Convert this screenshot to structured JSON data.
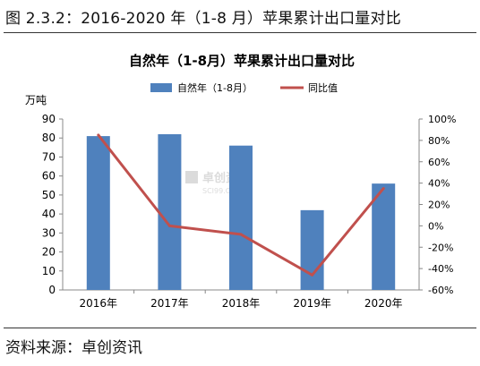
{
  "figure": {
    "caption": "图 2.3.2：2016-2020 年（1-8 月）苹果累计出口量对比",
    "source": "资料来源：卓创资讯"
  },
  "watermark": {
    "text_cn": "卓创资讯",
    "text_en": "SCI99.COM"
  },
  "chart_data": {
    "type": "bar",
    "title": "自然年（1-8月）苹果累计出口量对比",
    "categories": [
      "2016年",
      "2017年",
      "2018年",
      "2019年",
      "2020年"
    ],
    "series": [
      {
        "name": "自然年（1-8月）",
        "type": "bar",
        "axis": "left",
        "values": [
          81,
          82,
          76,
          42,
          56
        ],
        "color": "#4f81bd"
      },
      {
        "name": "同比值",
        "type": "line",
        "axis": "right",
        "values": [
          85,
          0,
          -8,
          -46,
          35
        ],
        "color": "#c0504d"
      }
    ],
    "y_left": {
      "label": "万吨",
      "ylim": [
        0,
        90
      ],
      "ticks": [
        "0",
        "10",
        "20",
        "30",
        "40",
        "50",
        "60",
        "70",
        "80",
        "90"
      ]
    },
    "y_right": {
      "ylim": [
        -60,
        100
      ],
      "ticks": [
        "-60%",
        "-40%",
        "-20%",
        "0%",
        "20%",
        "40%",
        "60%",
        "80%",
        "100%"
      ]
    },
    "legend_position": "top",
    "grid": false
  }
}
